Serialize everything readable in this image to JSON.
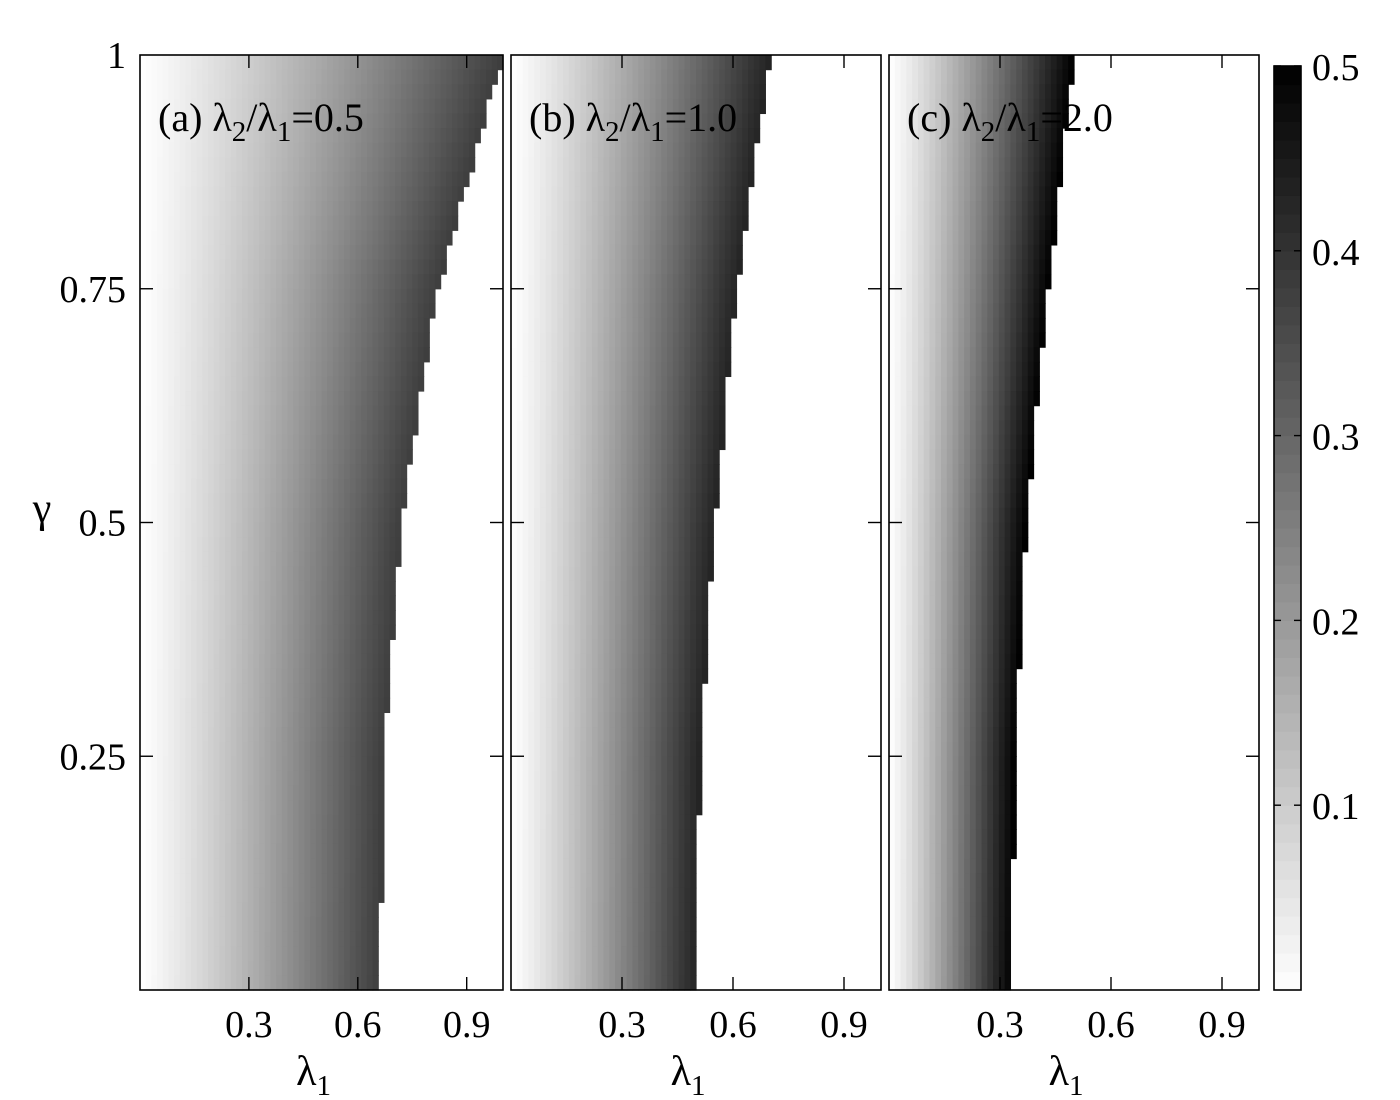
{
  "chart_data": {
    "type": "heatmap",
    "colorbar": {
      "colormap": "grayscale (white = low, black = high)",
      "range": [
        0,
        0.5
      ],
      "tick_values": [
        0.1,
        0.2,
        0.3,
        0.4,
        0.5
      ],
      "tick_labels": [
        "0.1",
        "0.2",
        "0.3",
        "0.4",
        "0.5"
      ]
    },
    "y_axis": {
      "symbol": "γ",
      "range": [
        0,
        1
      ],
      "tick_values": [
        0.25,
        0.5,
        0.75,
        1
      ],
      "tick_labels": [
        "0.25",
        "0.5",
        "0.75",
        "1"
      ]
    },
    "panels": [
      {
        "tag": "(a)",
        "ratio_value": "0.5",
        "x_axis": {
          "symbol": "λ",
          "subscript": "1",
          "range": [
            0,
            1
          ],
          "tick_values": [
            0.3,
            0.6,
            0.9
          ],
          "tick_labels": [
            "0.3",
            "0.6",
            "0.9"
          ]
        },
        "boundary": {
          "gamma": [
            0,
            0.25,
            0.5,
            0.75,
            1.0
          ],
          "lambda1": [
            0.66,
            0.67,
            0.72,
            0.82,
            1.0
          ]
        },
        "max_value": 0.38
      },
      {
        "tag": "(b)",
        "ratio_value": "1.0",
        "x_axis": {
          "symbol": "λ",
          "subscript": "1",
          "range": [
            0,
            1
          ],
          "tick_values": [
            0.3,
            0.6,
            0.9
          ],
          "tick_labels": [
            "0.3",
            "0.6",
            "0.9"
          ]
        },
        "boundary": {
          "gamma": [
            0,
            0.25,
            0.5,
            0.75,
            1.0
          ],
          "lambda1": [
            0.5,
            0.51,
            0.55,
            0.61,
            0.7
          ]
        },
        "max_value": 0.43
      },
      {
        "tag": "(c)",
        "ratio_value": "2.0",
        "x_axis": {
          "symbol": "λ",
          "subscript": "1",
          "range": [
            0,
            1
          ],
          "tick_values": [
            0.3,
            0.6,
            0.9
          ],
          "tick_labels": [
            "0.3",
            "0.6",
            "0.9"
          ]
        },
        "boundary": {
          "gamma": [
            0,
            0.25,
            0.5,
            0.75,
            1.0
          ],
          "lambda1": [
            0.33,
            0.34,
            0.37,
            0.43,
            0.5
          ]
        },
        "max_value": 0.5
      }
    ],
    "panel_title_parts": {
      "lambda": "λ",
      "sub2": "2",
      "slash": "/",
      "sub1": "1",
      "equals": "="
    }
  }
}
